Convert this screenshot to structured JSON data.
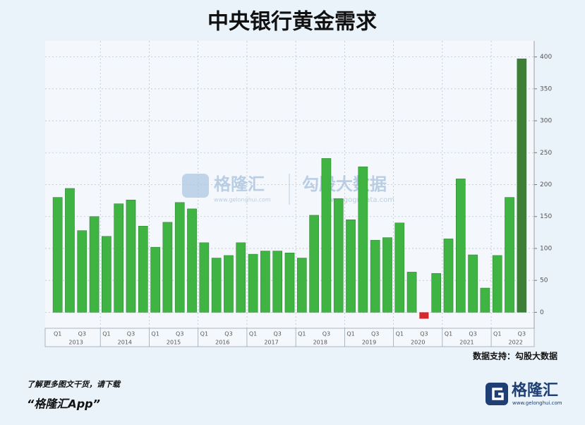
{
  "chart_data": {
    "type": "bar",
    "title": "中央银行黄金需求",
    "categories": [
      "Q1",
      null,
      "Q3",
      null,
      "Q1",
      null,
      "Q3",
      null,
      "Q1",
      null,
      "Q3",
      null,
      "Q1",
      null,
      "Q3",
      null,
      "Q1",
      null,
      "Q3",
      null,
      "Q1",
      null,
      "Q3",
      null,
      "Q1",
      null,
      "Q3",
      null,
      "Q1",
      null,
      "Q3",
      null,
      "Q1",
      null,
      "Q3",
      null,
      "Q1",
      null,
      "Q3"
    ],
    "years": [
      "2013",
      "2014",
      "2015",
      "2016",
      "2017",
      "2018",
      "2019",
      "2020",
      "2021",
      "2022"
    ],
    "values": [
      180,
      194,
      128,
      150,
      119,
      170,
      176,
      135,
      102,
      141,
      172,
      162,
      109,
      85,
      89,
      109,
      91,
      96,
      96,
      93,
      85,
      152,
      241,
      178,
      145,
      228,
      113,
      117,
      140,
      63,
      -10,
      61,
      115,
      209,
      90,
      38,
      89,
      180,
      397
    ],
    "color": "#3fb443",
    "negative_color": "#d42a2f",
    "latest_color": "#3d7f35",
    "ylim": [
      -25,
      425
    ],
    "yticks": [
      0,
      50,
      100,
      150,
      200,
      250,
      300,
      350,
      400
    ],
    "grid": true,
    "source": "数据支持：勾股大数据"
  },
  "watermark": {
    "brand": "格隆汇",
    "brand_url": "www.gelonghui.com",
    "partner": "勾股大数据",
    "partner_url": "www.gogudata.com"
  },
  "footer": {
    "prompt": "了解更多图文干货，请下载",
    "app": "“格隆汇App”",
    "logo": "格隆汇",
    "logo_url": "www.gelonghui.com"
  }
}
